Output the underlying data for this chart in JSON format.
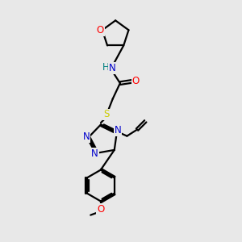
{
  "bg_color": "#e8e8e8",
  "bond_color": "#000000",
  "line_width": 1.6,
  "atom_colors": {
    "N": "#0000cc",
    "O": "#ff0000",
    "S": "#cccc00",
    "H": "#008080",
    "C": "#000000"
  },
  "font_size": 8.5,
  "fig_size": [
    3.0,
    3.0
  ],
  "dpi": 100
}
